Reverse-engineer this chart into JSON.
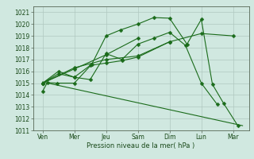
{
  "bg_color": "#d0e8e0",
  "grid_color": "#b0c8c0",
  "line_color": "#1a6b1a",
  "xlabel": "Pression niveau de la mer( hPa )",
  "x_tick_labels": [
    "Ven",
    "Mer",
    "Jeu",
    "Sam",
    "Dim",
    "Lun",
    "Mar"
  ],
  "ylim": [
    1011,
    1021.5
  ],
  "yticks": [
    1011,
    1012,
    1013,
    1014,
    1015,
    1016,
    1017,
    1018,
    1019,
    1020,
    1021
  ],
  "xlim": [
    -0.3,
    6.5
  ],
  "line1_x": [
    0,
    0.15,
    0.45,
    1.0,
    1.55,
    2.0,
    2.45,
    3.0,
    3.5,
    4.0,
    4.55,
    5.0,
    5.35,
    5.7,
    6.15
  ],
  "line1_y": [
    1014.3,
    1015.05,
    1015.0,
    1015.0,
    1016.6,
    1019.0,
    1019.5,
    1020.0,
    1020.55,
    1020.5,
    1018.3,
    1020.4,
    1014.9,
    1013.3,
    1011.4
  ],
  "line2_x": [
    0,
    0.5,
    1.0,
    1.5,
    2.0,
    2.5,
    3.0,
    3.5,
    4.0,
    4.5,
    5.0,
    5.5
  ],
  "line2_y": [
    1015.0,
    1016.0,
    1015.5,
    1015.3,
    1017.5,
    1017.0,
    1018.3,
    1018.8,
    1019.3,
    1018.2,
    1015.0,
    1013.2
  ],
  "line3_x": [
    0,
    0.5,
    1.0,
    1.5,
    2.0,
    2.5,
    3.0,
    4.0
  ],
  "line3_y": [
    1015.0,
    1015.8,
    1015.5,
    1016.5,
    1016.7,
    1016.9,
    1017.2,
    1018.5
  ],
  "line4_x": [
    0,
    1.0,
    2.0,
    3.0,
    4.0,
    5.0,
    6.0
  ],
  "line4_y": [
    1015.0,
    1016.3,
    1017.0,
    1017.3,
    1018.5,
    1019.2,
    1019.0
  ],
  "line5_x": [
    0,
    1.0,
    2.0,
    3.0
  ],
  "line5_y": [
    1015.0,
    1016.2,
    1017.4,
    1018.8
  ],
  "trend_x": [
    0,
    6.3
  ],
  "trend_y": [
    1015.1,
    1011.4
  ],
  "marker_size": 2.5,
  "lw": 0.8
}
